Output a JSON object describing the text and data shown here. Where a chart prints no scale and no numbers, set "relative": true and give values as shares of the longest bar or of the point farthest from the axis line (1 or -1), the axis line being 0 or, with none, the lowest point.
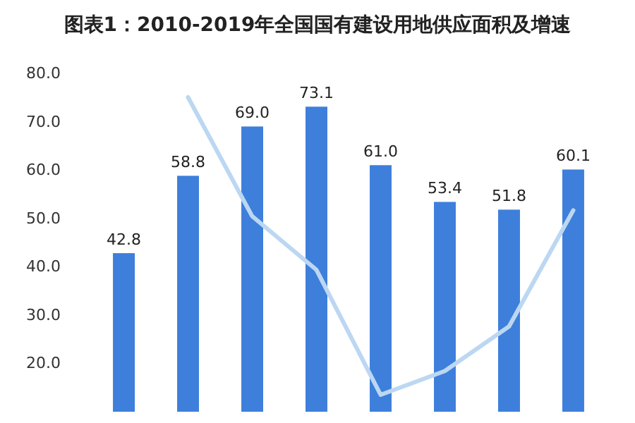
{
  "chart_data": [
    {
      "type": "bar",
      "title": "图表1：2010-2019年全国国有建设用地供应面积及增速",
      "categories": [
        null,
        null,
        null,
        null,
        null,
        null,
        null,
        null
      ],
      "series": [
        {
          "color": "#3d7fdb",
          "values": [
            42.8,
            58.8,
            69.0,
            73.1,
            61.0,
            53.4,
            51.8,
            60.1
          ],
          "value_labels": [
            "42.8",
            "58.8",
            "69.0",
            "73.1",
            "61.0",
            "53.4",
            "51.8",
            "60.1"
          ]
        }
      ],
      "ylim": [
        10,
        80
      ],
      "yticks": [
        {
          "value": 20,
          "label": "20.0"
        },
        {
          "value": 30,
          "label": "30.0"
        },
        {
          "value": 40,
          "label": "40.0"
        },
        {
          "value": 50,
          "label": "50.0"
        },
        {
          "value": 60,
          "label": "60.0"
        },
        {
          "value": 70,
          "label": "70.0"
        },
        {
          "value": 80,
          "label": "80.0"
        }
      ],
      "tick_labels": "y"
    },
    {
      "type": "line",
      "relative": true,
      "categories": [
        null,
        null,
        null,
        null,
        null,
        null,
        null,
        null
      ],
      "series": [
        {
          "color": "#bcd7f2",
          "values": [
            null,
            1.0,
            0.6,
            0.42,
            0.0,
            0.08,
            0.23,
            0.62
          ]
        }
      ],
      "tick_labels": false
    }
  ]
}
